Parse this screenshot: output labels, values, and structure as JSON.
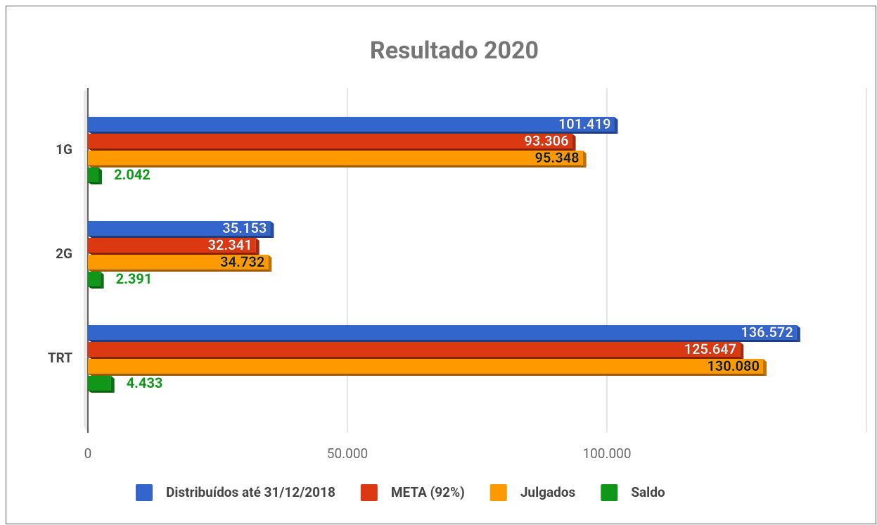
{
  "chart_data": {
    "type": "bar",
    "orientation": "horizontal",
    "title": "Resultado 2020",
    "categories": [
      "1G",
      "2G",
      "TRT"
    ],
    "series": [
      {
        "name": "Distribuídos até 31/12/2018",
        "color": "#3366cc",
        "values": [
          101419,
          35153,
          136572
        ],
        "value_labels": [
          "101.419",
          "35.153",
          "136.572"
        ]
      },
      {
        "name": "META (92%)",
        "color": "#dc3912",
        "values": [
          93306,
          32341,
          125647
        ],
        "value_labels": [
          "93.306",
          "32.341",
          "125.647"
        ]
      },
      {
        "name": "Julgados",
        "color": "#ff9900",
        "values": [
          95348,
          34732,
          130080
        ],
        "value_labels": [
          "95.348",
          "34.732",
          "130.080"
        ]
      },
      {
        "name": "Saldo",
        "color": "#109618",
        "values": [
          2042,
          2391,
          4433
        ],
        "value_labels": [
          "2.042",
          "2.391",
          "4.433"
        ]
      }
    ],
    "xlim": [
      0,
      150000
    ],
    "xticks": [
      0,
      {
        "value": 50000,
        "label": "50.000"
      },
      {
        "value": 100000,
        "label": "100.000"
      }
    ],
    "grid": true,
    "legend": "bottom"
  }
}
